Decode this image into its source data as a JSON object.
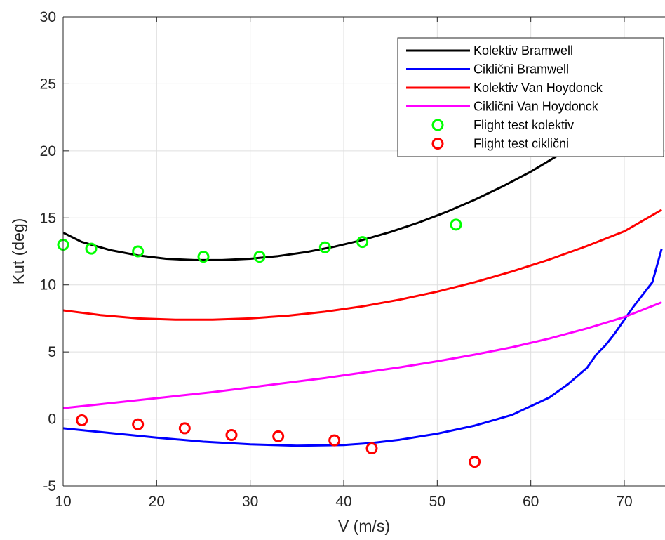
{
  "chart_data": {
    "type": "line",
    "xlabel": "V (m/s)",
    "ylabel": "Kut (deg)",
    "xlim": [
      10,
      74
    ],
    "ylim": [
      -5,
      30
    ],
    "xticks": [
      10,
      20,
      30,
      40,
      50,
      60,
      70
    ],
    "yticks": [
      -5,
      0,
      5,
      10,
      15,
      20,
      25,
      30
    ],
    "grid": true,
    "legend_position": "top-right",
    "series": [
      {
        "name": "Kolektiv Bramwell",
        "kind": "line",
        "color": "#000000",
        "x": [
          10,
          12,
          15,
          18,
          21,
          24,
          27,
          30,
          33,
          36,
          39,
          42,
          45,
          48,
          51,
          54,
          57,
          60,
          63,
          66,
          69,
          71,
          73,
          74
        ],
        "y": [
          13.9,
          13.2,
          12.6,
          12.2,
          11.95,
          11.85,
          11.85,
          11.95,
          12.15,
          12.45,
          12.85,
          13.35,
          13.95,
          14.65,
          15.45,
          16.35,
          17.35,
          18.45,
          19.7,
          21.05,
          22.55,
          23.6,
          24.7,
          25.4
        ]
      },
      {
        "name": "Ciklični Bramwell",
        "kind": "line",
        "color": "#0000ff",
        "x": [
          10,
          15,
          20,
          25,
          30,
          35,
          40,
          43,
          46,
          50,
          54,
          58,
          62,
          64,
          66,
          67,
          68,
          69,
          70,
          71,
          72,
          73,
          74
        ],
        "y": [
          -0.7,
          -1.05,
          -1.4,
          -1.7,
          -1.9,
          -2.0,
          -1.95,
          -1.8,
          -1.55,
          -1.1,
          -0.5,
          0.3,
          1.6,
          2.6,
          3.8,
          4.8,
          5.5,
          6.4,
          7.4,
          8.4,
          9.3,
          10.2,
          12.7
        ]
      },
      {
        "name": "Kolektiv Van Hoydonck",
        "kind": "line",
        "color": "#ff0000",
        "x": [
          10,
          14,
          18,
          22,
          26,
          30,
          34,
          38,
          42,
          46,
          50,
          54,
          58,
          62,
          66,
          70,
          74
        ],
        "y": [
          8.1,
          7.75,
          7.5,
          7.4,
          7.4,
          7.5,
          7.7,
          8.0,
          8.4,
          8.9,
          9.5,
          10.2,
          11.0,
          11.9,
          12.9,
          14.0,
          15.6
        ]
      },
      {
        "name": "Ciklični Van Hoydonck",
        "kind": "line",
        "color": "#ff00ff",
        "x": [
          10,
          14,
          18,
          22,
          26,
          30,
          34,
          38,
          42,
          46,
          50,
          54,
          58,
          62,
          66,
          70,
          74
        ],
        "y": [
          0.8,
          1.1,
          1.4,
          1.7,
          2.0,
          2.35,
          2.7,
          3.05,
          3.45,
          3.85,
          4.3,
          4.8,
          5.35,
          6.0,
          6.75,
          7.6,
          8.7
        ]
      },
      {
        "name": "Flight test kolektiv",
        "kind": "scatter",
        "color": "#00ff00",
        "x": [
          10,
          13,
          18,
          25,
          31,
          38,
          42,
          52
        ],
        "y": [
          13.0,
          12.7,
          12.5,
          12.1,
          12.1,
          12.8,
          13.2,
          14.5
        ]
      },
      {
        "name": "Flight test ciklični",
        "kind": "scatter",
        "color": "#ff0000",
        "x": [
          12,
          18,
          23,
          28,
          33,
          39,
          43,
          54
        ],
        "y": [
          -0.1,
          -0.4,
          -0.7,
          -1.2,
          -1.3,
          -1.6,
          -2.2,
          -3.2
        ]
      }
    ]
  }
}
